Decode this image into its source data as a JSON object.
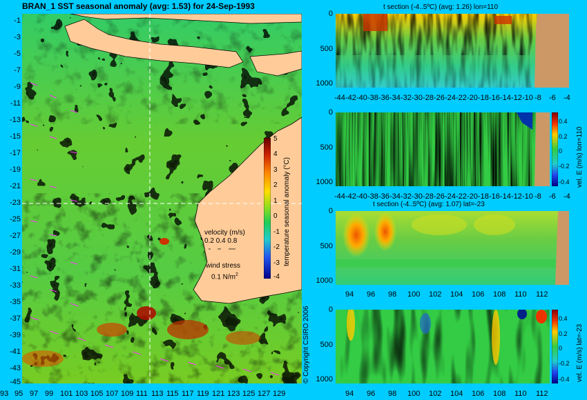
{
  "chart_data": [
    {
      "type": "heatmap",
      "title": "BRAN_1  SST seasonal anomaly (avg: 1.53) for 24-Sep-1993",
      "x_ticks": [
        "93",
        "95",
        "97",
        "99",
        "101",
        "103",
        "105",
        "107",
        "109",
        "111",
        "113",
        "115",
        "117",
        "119",
        "121",
        "123",
        "125",
        "127",
        "129"
      ],
      "y_ticks": [
        "-1",
        "-3",
        "-5",
        "-7",
        "-9",
        "-11",
        "-13",
        "-15",
        "-17",
        "-19",
        "-21",
        "-23",
        "-25",
        "-27",
        "-29",
        "-31",
        "-33",
        "-35",
        "-37",
        "-39",
        "-41",
        "-43",
        "-45"
      ],
      "xlim": [
        93,
        130
      ],
      "ylim": [
        -45,
        0
      ],
      "crosshair": {
        "lon": 110,
        "lat": -23
      },
      "colorbar": {
        "label": "temperature seasonal anomaly (°C)",
        "ticks": [
          "5",
          "4",
          "3",
          "2",
          "1",
          "0",
          "-1",
          "-2",
          "-3",
          "-4"
        ],
        "range": [
          -4,
          5
        ]
      },
      "legend": {
        "velocity_title": "velocity (m/s)",
        "velocity_values": [
          "0.2",
          "0.4",
          "0.8"
        ],
        "wind_title": "wind stress",
        "wind_value": "0.1 N/m",
        "wind_exp": "2"
      },
      "copyright": "© Copyright CSIRO 2006"
    },
    {
      "type": "heatmap",
      "title": "t section (-4..5ºC) (avg: 1.26) lon=110",
      "x_ticks": [
        "-44",
        "-42",
        "-40",
        "-38",
        "-36",
        "-34",
        "-32",
        "-30",
        "-28",
        "-26",
        "-24",
        "-22",
        "-20",
        "-18",
        "-16",
        "-14",
        "-12",
        "-10",
        "-8",
        "-6",
        "-4"
      ],
      "xlim": [
        -45,
        -2
      ],
      "y_ticks": [
        "0",
        "500",
        "1000"
      ],
      "ylim": [
        1100,
        0
      ]
    },
    {
      "type": "heatmap",
      "title": "",
      "x_ticks": [
        "-44",
        "-42",
        "-40",
        "-38",
        "-36",
        "-34",
        "-32",
        "-30",
        "-28",
        "-26",
        "-24",
        "-22",
        "-20",
        "-18",
        "-16",
        "-14",
        "-12",
        "-10",
        "-8",
        "-6",
        "-4"
      ],
      "xlim": [
        -45,
        -2
      ],
      "y_ticks": [
        "0",
        "500",
        "1000"
      ],
      "ylim": [
        1100,
        0
      ],
      "colorbar": {
        "label": "vel. E (m/s) lon=110",
        "ticks": [
          "0.4",
          "0.2",
          "0",
          "-0.2",
          "-0.4"
        ],
        "range": [
          -0.5,
          0.5
        ]
      }
    },
    {
      "type": "heatmap",
      "title": "t section (-4..5ºC) (avg: 1.07) lat=-23",
      "x_ticks": [
        "94",
        "96",
        "98",
        "100",
        "102",
        "104",
        "106",
        "108",
        "110",
        "112"
      ],
      "xlim": [
        92.5,
        114
      ],
      "y_ticks": [
        "0",
        "500",
        "1000"
      ],
      "ylim": [
        1100,
        0
      ]
    },
    {
      "type": "heatmap",
      "title": "",
      "x_ticks": [
        "94",
        "96",
        "98",
        "100",
        "102",
        "104",
        "106",
        "108",
        "110",
        "112"
      ],
      "xlim": [
        92.5,
        114
      ],
      "y_ticks": [
        "0",
        "500",
        "1000"
      ],
      "ylim": [
        1100,
        0
      ],
      "colorbar": {
        "label": "vel. E (m/s) lat=-23",
        "ticks": [
          "0.4",
          "0.2",
          "0",
          "-0.2",
          "-0.4"
        ],
        "range": [
          -0.5,
          0.5
        ]
      }
    }
  ]
}
